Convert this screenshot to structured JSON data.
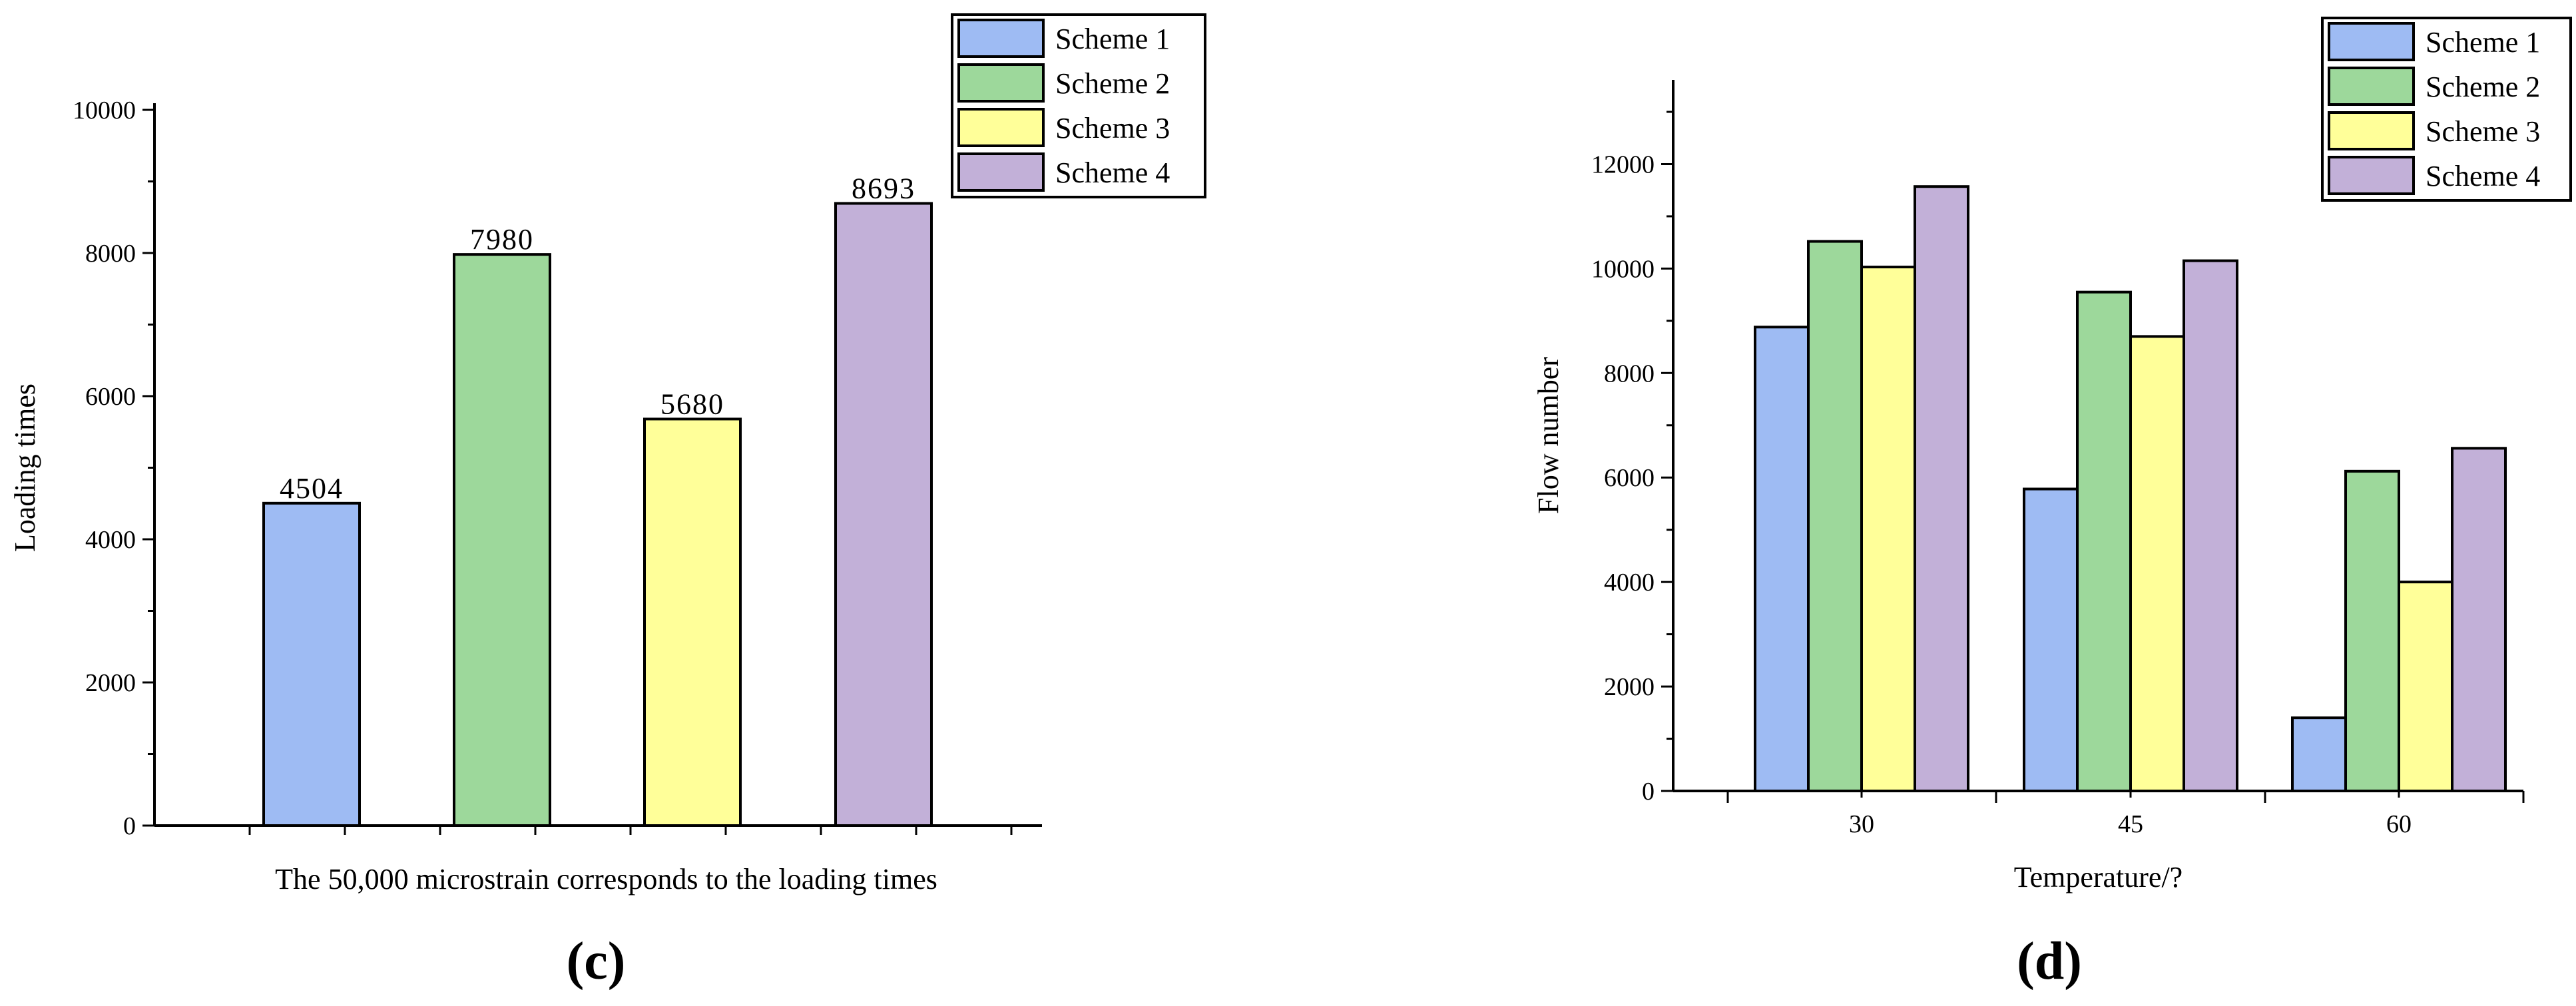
{
  "panels": {
    "c": {
      "label": "(c)"
    },
    "d": {
      "label": "(d)"
    }
  },
  "chart_data": [
    {
      "id": "c",
      "type": "bar",
      "title": "",
      "xlabel": "The 50,000 microstrain corresponds to the loading times",
      "ylabel": "Loading times",
      "ylim": [
        0,
        10000
      ],
      "yticks": [
        0,
        2000,
        4000,
        6000,
        8000,
        10000
      ],
      "grid": false,
      "legend": "top-right",
      "series": [
        {
          "name": "Scheme 1",
          "color": "#9ebbf3",
          "values": [
            4504
          ],
          "label": "4504"
        },
        {
          "name": "Scheme 2",
          "color": "#9dd89b",
          "values": [
            7980
          ],
          "label": "7980"
        },
        {
          "name": "Scheme 3",
          "color": "#ffff99",
          "values": [
            5680
          ],
          "label": "5680"
        },
        {
          "name": "Scheme 4",
          "color": "#c2b0d8",
          "values": [
            8693
          ],
          "label": "8693"
        }
      ]
    },
    {
      "id": "d",
      "type": "bar",
      "title": "",
      "xlabel": "Temperature/?",
      "ylabel": "Flow number",
      "categories": [
        "30",
        "45",
        "60"
      ],
      "ylim": [
        0,
        13000
      ],
      "yticks": [
        0,
        2000,
        4000,
        6000,
        8000,
        10000,
        12000
      ],
      "grid": false,
      "legend": "top-right",
      "series": [
        {
          "name": "Scheme 1",
          "color": "#9ebbf3",
          "values": [
            8880,
            5780,
            1400
          ]
        },
        {
          "name": "Scheme 2",
          "color": "#9dd89b",
          "values": [
            10520,
            9550,
            6120
          ]
        },
        {
          "name": "Scheme 3",
          "color": "#ffff99",
          "values": [
            10030,
            8700,
            4000
          ]
        },
        {
          "name": "Scheme 4",
          "color": "#c2b0d8",
          "values": [
            11570,
            10150,
            6560
          ]
        }
      ]
    }
  ]
}
